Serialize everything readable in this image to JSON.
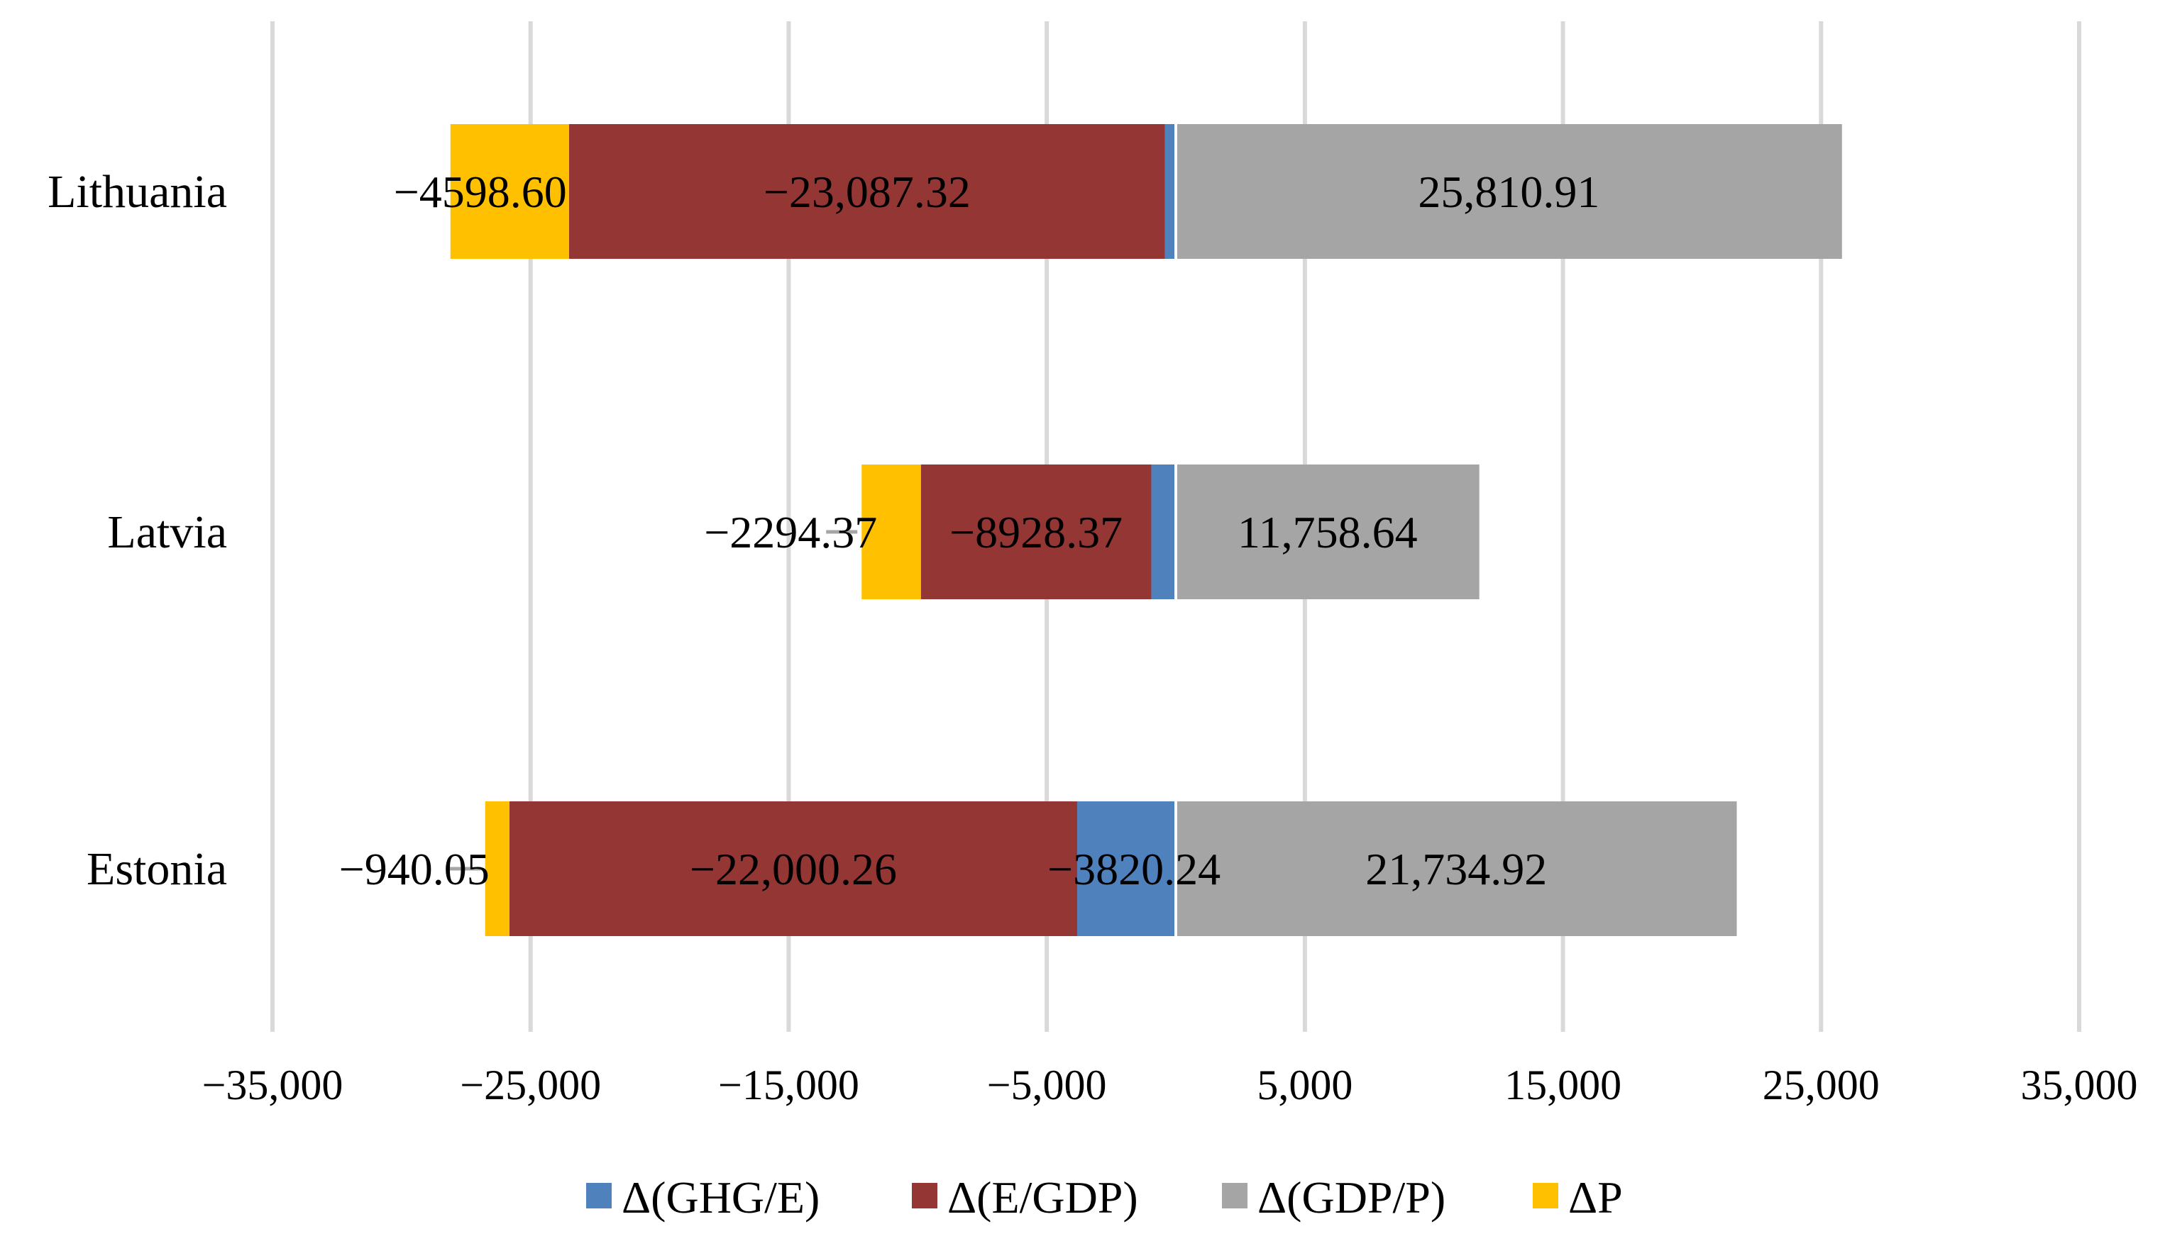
{
  "chart_data": {
    "type": "bar",
    "orientation": "horizontal",
    "stacked": true,
    "title": "",
    "xlabel": "",
    "ylabel": "",
    "xlim": [
      -35000,
      35000
    ],
    "x_ticks": [
      -35000,
      -25000,
      -15000,
      -5000,
      5000,
      15000,
      25000,
      35000
    ],
    "x_tick_labels": [
      "−35,000",
      "−25,000",
      "−15,000",
      "−5,000",
      "5,000",
      "15,000",
      "25,000",
      "35,000"
    ],
    "grid": true,
    "legend_position": "bottom",
    "categories": [
      "Lithuania",
      "Latvia",
      "Estonia"
    ],
    "series": [
      {
        "name": "Δ(GHG/E)",
        "color": "#4f81bd",
        "values": [
          -420.0,
          -950.0,
          -3820.24
        ],
        "labels": [
          "",
          "",
          "−3820.24"
        ]
      },
      {
        "name": "Δ(E/GDP)",
        "color": "#943634",
        "values": [
          -23087.32,
          -8928.37,
          -22000.26
        ],
        "labels": [
          "−23,087.32",
          "−8928.37",
          "−22,000.26"
        ]
      },
      {
        "name": "Δ(GDP/P)",
        "color": "#a5a5a5",
        "values": [
          25810.91,
          11758.64,
          21734.92
        ],
        "labels": [
          "25,810.91",
          "11,758.64",
          "21,734.92"
        ]
      },
      {
        "name": "ΔP",
        "color": "#ffc000",
        "values": [
          -4598.6,
          -2294.37,
          -940.05
        ],
        "labels": [
          "−4598.60",
          "−2294.37",
          "−940.05"
        ]
      }
    ]
  }
}
